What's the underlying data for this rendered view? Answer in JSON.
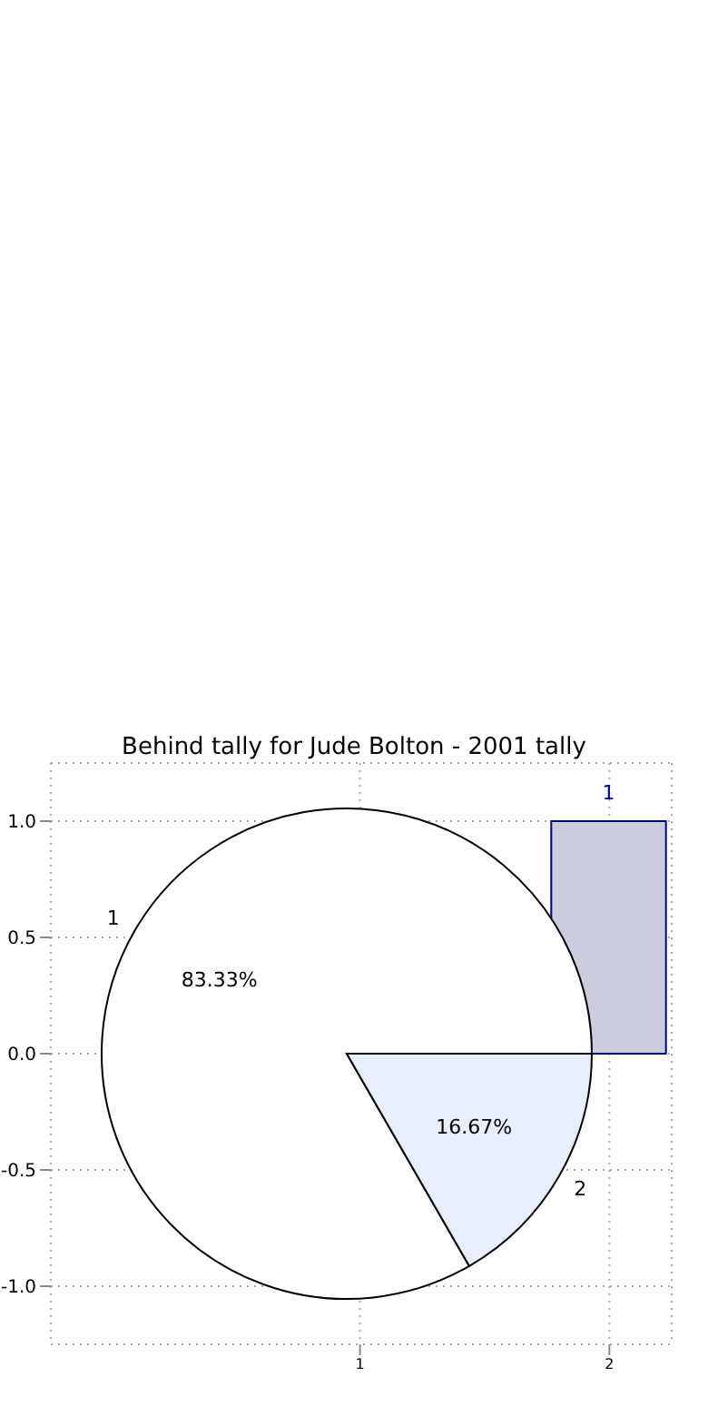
{
  "chart_data": [
    {
      "type": "bar",
      "title": "Behind tally for Jude Bolton - 2001 tally",
      "x": [
        2
      ],
      "values": [
        1
      ],
      "value_labels": [
        "1"
      ],
      "color": "#ccccdf",
      "xlim": [
        -0.24,
        2.25
      ],
      "xticks": [
        1,
        2
      ],
      "ylim": [
        -1.25,
        1.25
      ],
      "yticks": [
        {
          "value": -1,
          "label": "-1.0"
        },
        {
          "value": -0.5,
          "label": "-0.5"
        },
        {
          "value": 0,
          "label": "0.0"
        },
        {
          "value": 0.5,
          "label": "0.5"
        },
        {
          "value": 1,
          "label": "1.0"
        }
      ],
      "grid": true
    },
    {
      "type": "pie",
      "categories": [
        "1",
        "2"
      ],
      "values": [
        83.33,
        16.67
      ],
      "colors": [
        "#ffffff",
        "#e8effc"
      ],
      "value_labels": [
        "83.33%",
        "16.67%"
      ]
    }
  ]
}
